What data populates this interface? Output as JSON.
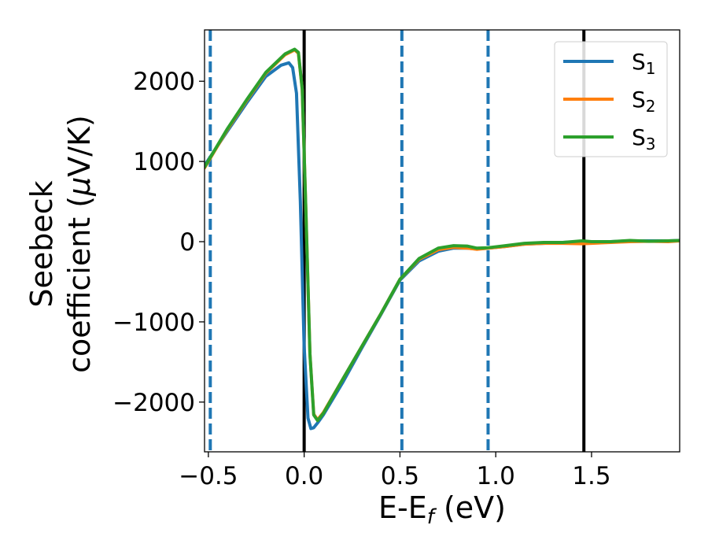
{
  "chart_data": {
    "type": "line",
    "xlabel": {
      "main": "E-E",
      "sub": "f",
      "tail": " (eV)"
    },
    "ylabel": {
      "line1": "Seebeck",
      "line2_prefix": "coefficient  (",
      "mu": "μ",
      "line2_suffix": "V/K)"
    },
    "xlim": [
      -0.52,
      1.96
    ],
    "ylim": [
      -2620,
      2640
    ],
    "xticks": [
      {
        "value": -0.5,
        "label": "−0.5"
      },
      {
        "value": 0.0,
        "label": "0.0"
      },
      {
        "value": 0.5,
        "label": "0.5"
      },
      {
        "value": 1.0,
        "label": "1.0"
      },
      {
        "value": 1.5,
        "label": "1.5"
      }
    ],
    "yticks": [
      {
        "value": 2000,
        "label": "2000"
      },
      {
        "value": 1000,
        "label": "1000"
      },
      {
        "value": 0,
        "label": "0"
      },
      {
        "value": -1000,
        "label": "−1000"
      },
      {
        "value": -2000,
        "label": "−2000"
      }
    ],
    "vlines_solid": [
      0.0,
      1.46
    ],
    "vlines_dashed": [
      -0.49,
      0.51,
      0.96
    ],
    "legend_position": "top-right",
    "series": [
      {
        "name": "S",
        "sub": "1",
        "color": "#1f77b4",
        "x": [
          -0.52,
          -0.4,
          -0.3,
          -0.2,
          -0.12,
          -0.08,
          -0.06,
          -0.04,
          -0.02,
          0.0,
          0.02,
          0.035,
          0.05,
          0.07,
          0.1,
          0.2,
          0.3,
          0.4,
          0.5,
          0.6,
          0.7,
          0.78,
          0.85,
          0.9,
          0.96,
          1.05,
          1.15,
          1.25,
          1.35,
          1.45,
          1.5,
          1.6,
          1.7,
          1.8,
          1.9,
          1.96
        ],
        "y": [
          950,
          1380,
          1730,
          2060,
          2200,
          2230,
          2170,
          1850,
          500,
          -1300,
          -2200,
          -2330,
          -2320,
          -2260,
          -2160,
          -1760,
          -1330,
          -910,
          -480,
          -240,
          -120,
          -80,
          -80,
          -90,
          -80,
          -60,
          -30,
          -20,
          -10,
          0,
          0,
          0,
          10,
          10,
          10,
          15
        ]
      },
      {
        "name": "S",
        "sub": "2",
        "color": "#ff7f0e",
        "x": [
          -0.52,
          -0.4,
          -0.3,
          -0.2,
          -0.1,
          -0.05,
          -0.03,
          -0.01,
          0.01,
          0.03,
          0.05,
          0.07,
          0.1,
          0.2,
          0.3,
          0.4,
          0.5,
          0.6,
          0.7,
          0.78,
          0.85,
          0.9,
          0.96,
          1.05,
          1.15,
          1.25,
          1.35,
          1.45,
          1.5,
          1.6,
          1.7,
          1.8,
          1.9,
          1.96
        ],
        "y": [
          920,
          1400,
          1760,
          2100,
          2330,
          2390,
          2350,
          1900,
          300,
          -1400,
          -2150,
          -2220,
          -2130,
          -1720,
          -1310,
          -900,
          -470,
          -220,
          -100,
          -70,
          -80,
          -95,
          -80,
          -60,
          -30,
          -20,
          -20,
          -25,
          -20,
          -10,
          0,
          5,
          0,
          10
        ]
      },
      {
        "name": "S",
        "sub": "3",
        "color": "#2ca02c",
        "x": [
          -0.52,
          -0.4,
          -0.3,
          -0.2,
          -0.1,
          -0.05,
          -0.03,
          -0.01,
          0.01,
          0.03,
          0.05,
          0.07,
          0.1,
          0.2,
          0.3,
          0.4,
          0.5,
          0.6,
          0.7,
          0.78,
          0.85,
          0.9,
          0.96,
          1.05,
          1.15,
          1.25,
          1.35,
          1.45,
          1.5,
          1.6,
          1.7,
          1.8,
          1.9,
          1.96
        ],
        "y": [
          930,
          1410,
          1770,
          2110,
          2340,
          2400,
          2360,
          1900,
          300,
          -1400,
          -2160,
          -2230,
          -2140,
          -1720,
          -1310,
          -900,
          -470,
          -210,
          -80,
          -50,
          -55,
          -80,
          -75,
          -50,
          -20,
          -10,
          -10,
          10,
          0,
          0,
          15,
          5,
          10,
          15
        ]
      }
    ]
  }
}
